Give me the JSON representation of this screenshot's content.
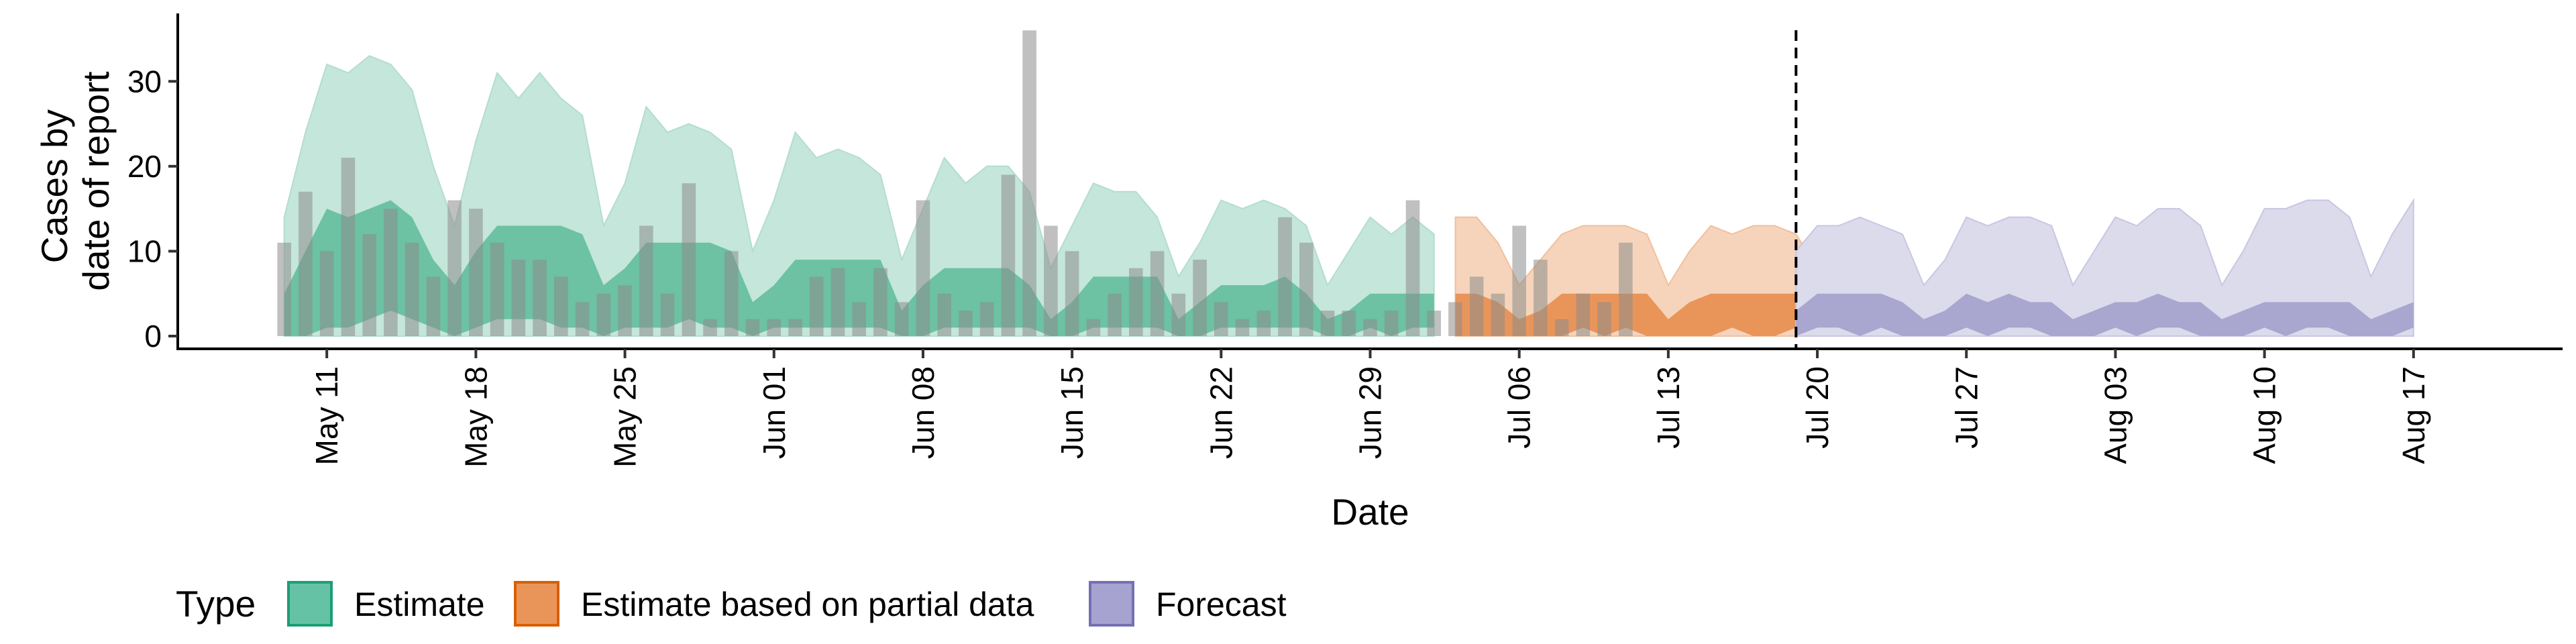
{
  "chart_data": {
    "type": "area",
    "xlabel": "Date",
    "ylabel_lines": [
      "Cases by",
      "date of report"
    ],
    "ylim": [
      -1.5,
      38
    ],
    "yticks": [
      0,
      10,
      20,
      30
    ],
    "xlim": [
      "2020-05-04",
      "2020-08-24"
    ],
    "xticks": [
      {
        "date": "2020-05-11",
        "label": "May 11"
      },
      {
        "date": "2020-05-18",
        "label": "May 18"
      },
      {
        "date": "2020-05-25",
        "label": "May 25"
      },
      {
        "date": "2020-06-01",
        "label": "Jun 01"
      },
      {
        "date": "2020-06-08",
        "label": "Jun 08"
      },
      {
        "date": "2020-06-15",
        "label": "Jun 15"
      },
      {
        "date": "2020-06-22",
        "label": "Jun 22"
      },
      {
        "date": "2020-06-29",
        "label": "Jun 29"
      },
      {
        "date": "2020-07-06",
        "label": "Jul 06"
      },
      {
        "date": "2020-07-13",
        "label": "Jul 13"
      },
      {
        "date": "2020-07-20",
        "label": "Jul 20"
      },
      {
        "date": "2020-07-27",
        "label": "Jul 27"
      },
      {
        "date": "2020-08-03",
        "label": "Aug 03"
      },
      {
        "date": "2020-08-10",
        "label": "Aug 10"
      },
      {
        "date": "2020-08-17",
        "label": "Aug 17"
      }
    ],
    "forecast_start": "2020-07-19",
    "legend": {
      "title": "Type",
      "placement": "bottom",
      "items": [
        {
          "label": "Estimate",
          "fill": "#66c2a5",
          "stroke": "#1b9e77"
        },
        {
          "label": "Estimate based on partial data",
          "fill": "#e9955a",
          "stroke": "#d95f02"
        },
        {
          "label": "Forecast",
          "fill": "#a7a3d0",
          "stroke": "#7570b3"
        }
      ]
    },
    "series": [
      {
        "name": "Estimate",
        "start": "2020-05-09",
        "colors": {
          "outer": "#c5e6da",
          "inner": "#6cc2a3",
          "line": "#b3ddd0"
        },
        "outer_lower": [
          0,
          0,
          0,
          0,
          0,
          0,
          0,
          0,
          0,
          0,
          0,
          0,
          0,
          0,
          0,
          0,
          0,
          0,
          0,
          0,
          0,
          0,
          0,
          0,
          0,
          0,
          0,
          0,
          0,
          0,
          0,
          0,
          0,
          0,
          0,
          0,
          0,
          0,
          0,
          0,
          0,
          0,
          0,
          0,
          0,
          0,
          0,
          0,
          0,
          0,
          0,
          0,
          0,
          0,
          0
        ],
        "outer_upper": [
          14,
          24,
          32,
          31,
          33,
          32,
          29,
          20,
          13,
          23,
          31,
          28,
          31,
          28,
          26,
          13,
          18,
          27,
          24,
          25,
          24,
          22,
          10,
          16,
          24,
          21,
          22,
          21,
          19,
          9,
          15,
          21,
          18,
          20,
          20,
          17,
          8,
          13,
          18,
          17,
          17,
          14,
          7,
          11,
          16,
          15,
          16,
          15,
          13,
          6,
          10,
          14,
          12,
          14,
          12
        ],
        "inner_lower": [
          0,
          0,
          1,
          1,
          2,
          3,
          2,
          1,
          0,
          1,
          2,
          2,
          2,
          1,
          1,
          0,
          1,
          1,
          1,
          2,
          1,
          1,
          0,
          1,
          1,
          1,
          1,
          1,
          1,
          0,
          0,
          1,
          1,
          1,
          1,
          1,
          0,
          0,
          1,
          1,
          1,
          1,
          0,
          0,
          1,
          1,
          1,
          1,
          1,
          0,
          0,
          1,
          0,
          1,
          1
        ],
        "inner_upper": [
          5,
          10,
          15,
          14,
          15,
          16,
          14,
          9,
          6,
          10,
          13,
          13,
          13,
          13,
          12,
          6,
          8,
          11,
          11,
          11,
          11,
          10,
          4,
          6,
          9,
          9,
          9,
          9,
          9,
          3,
          6,
          8,
          8,
          8,
          8,
          6,
          2,
          4,
          7,
          7,
          7,
          7,
          2,
          4,
          6,
          6,
          6,
          7,
          5,
          2,
          3,
          5,
          5,
          5,
          5
        ]
      },
      {
        "name": "Estimate based on partial data",
        "start": "2020-07-03",
        "colors": {
          "outer": "#f6d4bb",
          "inner": "#e9955a",
          "line": "#f1c09c"
        },
        "outer_lower": [
          0,
          0,
          0,
          0,
          0,
          0,
          0,
          0,
          0,
          0,
          0,
          0,
          0,
          0,
          0,
          0,
          0,
          0
        ],
        "outer_upper": [
          14,
          14,
          11,
          6,
          9,
          12,
          13,
          13,
          13,
          12,
          6,
          10,
          13,
          12,
          13,
          13,
          12,
          8
        ],
        "inner_lower": [
          0,
          0,
          0,
          0,
          0,
          0,
          1,
          0,
          1,
          0,
          0,
          0,
          0,
          1,
          0,
          0,
          1,
          0
        ],
        "inner_upper": [
          5,
          5,
          4,
          2,
          3,
          5,
          5,
          5,
          5,
          5,
          2,
          4,
          5,
          5,
          5,
          5,
          5,
          3
        ]
      },
      {
        "name": "Forecast",
        "start": "2020-07-19",
        "colors": {
          "outer": "#dcdbec",
          "inner": "#a9a6cf",
          "line": "#c9c6e2"
        },
        "outer_lower": [
          0,
          0,
          0,
          0,
          0,
          0,
          0,
          0,
          0,
          0,
          0,
          0,
          0,
          0,
          0,
          0,
          0,
          0,
          0,
          0,
          0,
          0,
          0,
          0,
          0,
          0,
          0,
          0,
          0,
          0
        ],
        "outer_upper": [
          10,
          13,
          13,
          14,
          13,
          12,
          6,
          9,
          14,
          13,
          14,
          14,
          13,
          6,
          10,
          14,
          13,
          15,
          15,
          13,
          6,
          10,
          15,
          15,
          16,
          16,
          14,
          7,
          12,
          16
        ],
        "inner_lower": [
          0,
          1,
          1,
          0,
          1,
          0,
          0,
          0,
          1,
          0,
          1,
          1,
          0,
          0,
          0,
          1,
          0,
          1,
          1,
          0,
          0,
          0,
          1,
          0,
          1,
          1,
          0,
          0,
          0,
          1
        ],
        "inner_upper": [
          3,
          5,
          5,
          5,
          5,
          4,
          2,
          3,
          5,
          4,
          5,
          4,
          4,
          2,
          3,
          4,
          4,
          5,
          4,
          4,
          2,
          3,
          4,
          4,
          4,
          4,
          4,
          2,
          3,
          4
        ]
      }
    ],
    "observed_cases": {
      "start": "2020-05-09",
      "color": "#8c8c8c",
      "values": [
        11,
        17,
        10,
        21,
        12,
        15,
        11,
        7,
        16,
        15,
        11,
        9,
        9,
        7,
        4,
        5,
        6,
        13,
        5,
        18,
        2,
        10,
        2,
        2,
        2,
        7,
        8,
        4,
        8,
        4,
        16,
        5,
        3,
        4,
        19,
        36,
        13,
        10,
        2,
        5,
        8,
        10,
        5,
        9,
        4,
        2,
        3,
        14,
        11,
        3,
        3,
        2,
        3,
        16,
        3,
        4,
        7,
        5,
        13,
        9,
        2,
        5,
        4,
        11
      ]
    }
  }
}
